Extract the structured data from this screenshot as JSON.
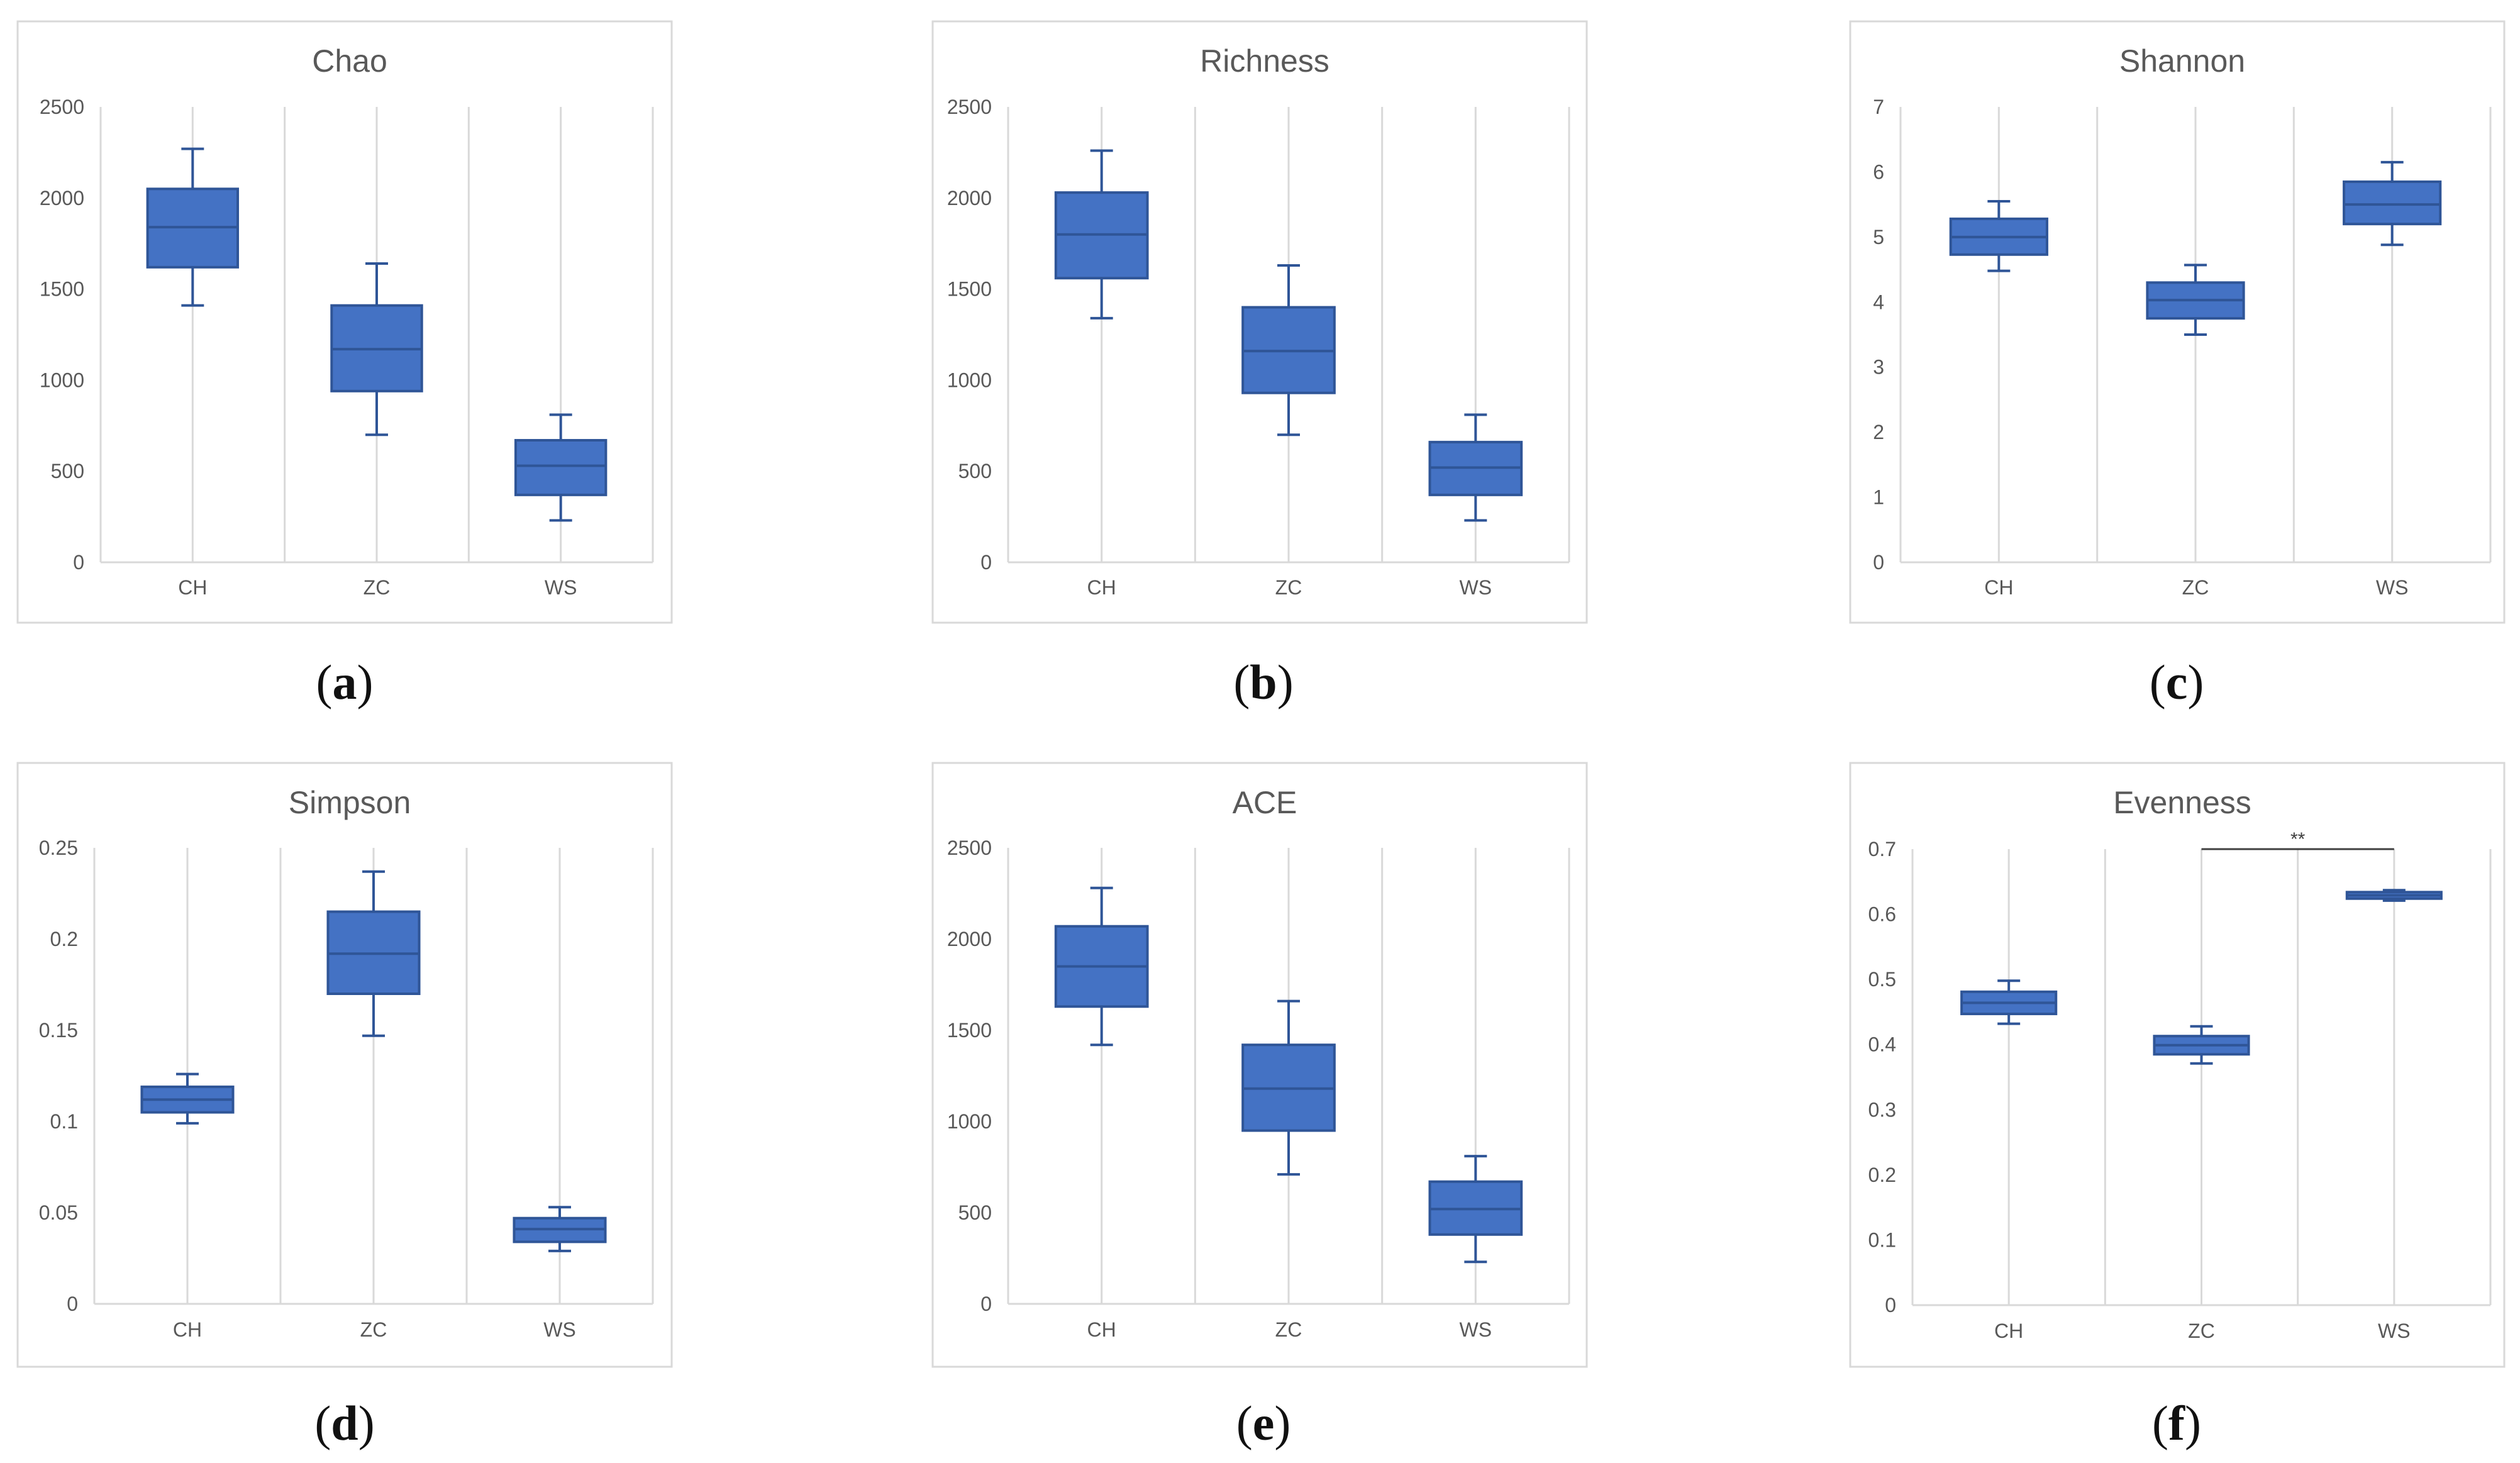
{
  "colors": {
    "box": "#4472C4",
    "box_edge": "#2F5597",
    "grid": "#D9D9D9",
    "tick_text": "#595959",
    "title_text": "#595959",
    "frame": "#D9D9D9"
  },
  "captions": [
    "a",
    "b",
    "c",
    "d",
    "e",
    "f"
  ],
  "chart_data": [
    {
      "type": "box",
      "panel": "a",
      "title": "Chao",
      "categories": [
        "CH",
        "ZC",
        "WS"
      ],
      "ylim": [
        0,
        2500
      ],
      "yticks": [
        0,
        500,
        1000,
        1500,
        2000,
        2500
      ],
      "boxes": [
        {
          "min": 1410,
          "q1": 1620,
          "median": 1840,
          "q3": 2050,
          "max": 2270
        },
        {
          "min": 700,
          "q1": 940,
          "median": 1170,
          "q3": 1410,
          "max": 1640
        },
        {
          "min": 230,
          "q1": 370,
          "median": 530,
          "q3": 670,
          "max": 810
        }
      ]
    },
    {
      "type": "box",
      "panel": "b",
      "title": "Richness",
      "categories": [
        "CH",
        "ZC",
        "WS"
      ],
      "ylim": [
        0,
        2500
      ],
      "yticks": [
        0,
        500,
        1000,
        1500,
        2000,
        2500
      ],
      "boxes": [
        {
          "min": 1340,
          "q1": 1560,
          "median": 1800,
          "q3": 2030,
          "max": 2260
        },
        {
          "min": 700,
          "q1": 930,
          "median": 1160,
          "q3": 1400,
          "max": 1630
        },
        {
          "min": 230,
          "q1": 370,
          "median": 520,
          "q3": 660,
          "max": 810
        }
      ]
    },
    {
      "type": "box",
      "panel": "c",
      "title": "Shannon",
      "categories": [
        "CH",
        "ZC",
        "WS"
      ],
      "ylim": [
        0,
        7
      ],
      "yticks": [
        0,
        1,
        2,
        3,
        4,
        5,
        6,
        7
      ],
      "boxes": [
        {
          "min": 4.48,
          "q1": 4.73,
          "median": 5.0,
          "q3": 5.28,
          "max": 5.55
        },
        {
          "min": 3.5,
          "q1": 3.75,
          "median": 4.03,
          "q3": 4.3,
          "max": 4.57
        },
        {
          "min": 4.88,
          "q1": 5.2,
          "median": 5.5,
          "q3": 5.85,
          "max": 6.15
        }
      ]
    },
    {
      "type": "box",
      "panel": "d",
      "title": "Simpson",
      "categories": [
        "CH",
        "ZC",
        "WS"
      ],
      "ylim": [
        0,
        0.25
      ],
      "yticks": [
        "0",
        "0.05",
        "0.1",
        "0.15",
        "0.2",
        "0.25"
      ],
      "boxes": [
        {
          "min": 0.099,
          "q1": 0.105,
          "median": 0.112,
          "q3": 0.119,
          "max": 0.126
        },
        {
          "min": 0.147,
          "q1": 0.17,
          "median": 0.192,
          "q3": 0.215,
          "max": 0.237
        },
        {
          "min": 0.029,
          "q1": 0.034,
          "median": 0.041,
          "q3": 0.047,
          "max": 0.053
        }
      ]
    },
    {
      "type": "box",
      "panel": "e",
      "title": "ACE",
      "categories": [
        "CH",
        "ZC",
        "WS"
      ],
      "ylim": [
        0,
        2500
      ],
      "yticks": [
        0,
        500,
        1000,
        1500,
        2000,
        2500
      ],
      "boxes": [
        {
          "min": 1420,
          "q1": 1630,
          "median": 1850,
          "q3": 2070,
          "max": 2280
        },
        {
          "min": 710,
          "q1": 950,
          "median": 1180,
          "q3": 1420,
          "max": 1660
        },
        {
          "min": 230,
          "q1": 380,
          "median": 520,
          "q3": 670,
          "max": 810
        }
      ]
    },
    {
      "type": "box",
      "panel": "f",
      "title": "Evenness",
      "categories": [
        "CH",
        "ZC",
        "WS"
      ],
      "ylim": [
        0,
        0.7
      ],
      "yticks": [
        "0",
        "0.1",
        "0.2",
        "0.3",
        "0.4",
        "0.5",
        "0.6",
        "0.7"
      ],
      "boxes": [
        {
          "min": 0.432,
          "q1": 0.447,
          "median": 0.464,
          "q3": 0.481,
          "max": 0.498
        },
        {
          "min": 0.371,
          "q1": 0.385,
          "median": 0.399,
          "q3": 0.413,
          "max": 0.428
        },
        {
          "min": 0.621,
          "q1": 0.624,
          "median": 0.629,
          "q3": 0.634,
          "max": 0.637
        }
      ],
      "annotations": [
        {
          "from": "ZC",
          "to": "WS",
          "text": "**",
          "y": 0.7
        }
      ]
    }
  ]
}
